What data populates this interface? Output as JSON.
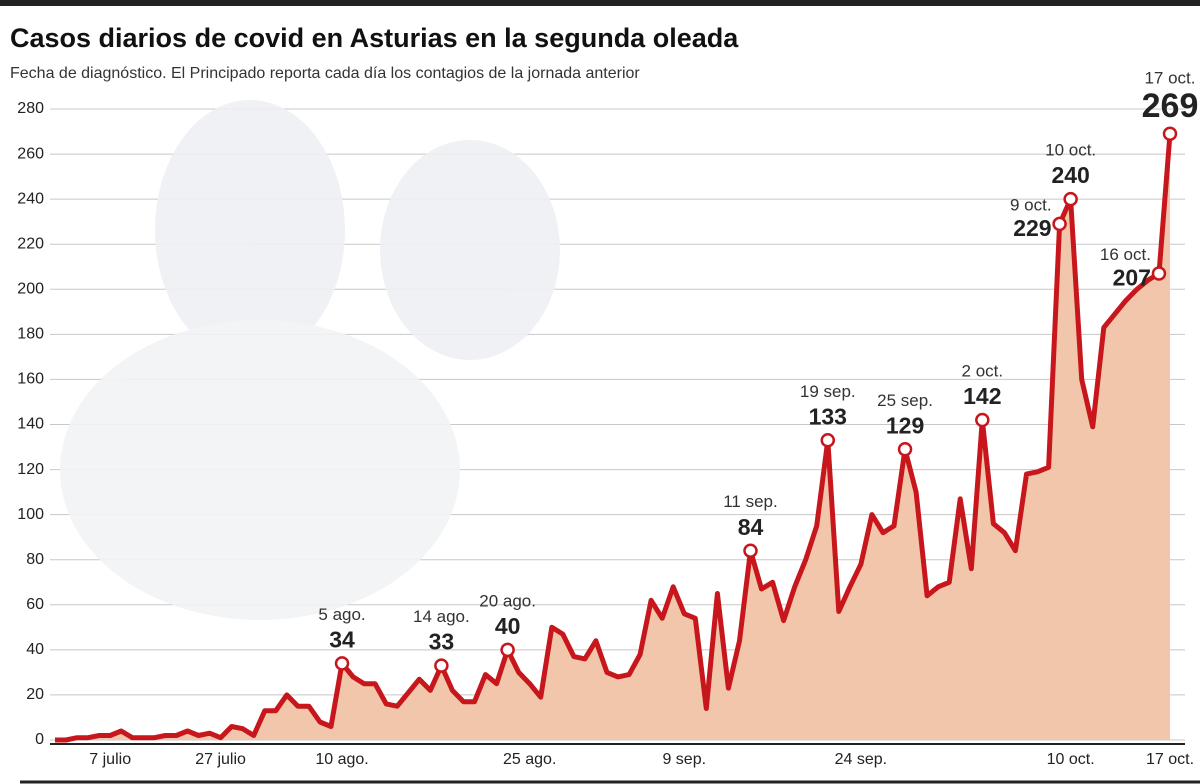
{
  "chart_data": {
    "type": "line",
    "title": "Casos diarios de covid en Asturias en la segunda oleada",
    "subtitle": "Fecha de diagnóstico. El Principado reporta cada día los contagios de la jornada anterior",
    "categories": [
      null,
      null,
      null,
      null,
      null,
      "7 julio",
      null,
      null,
      null,
      null,
      null,
      null,
      null,
      null,
      null,
      "27 julio",
      null,
      null,
      null,
      null,
      null,
      null,
      null,
      null,
      null,
      null,
      "10 ago.",
      null,
      null,
      null,
      null,
      null,
      null,
      null,
      null,
      null,
      null,
      null,
      null,
      null,
      null,
      null,
      null,
      "25 ago.",
      null,
      null,
      null,
      null,
      null,
      null,
      null,
      null,
      null,
      null,
      null,
      null,
      null,
      "9 sep.",
      null,
      null,
      null,
      null,
      null,
      null,
      null,
      null,
      null,
      null,
      null,
      null,
      null,
      null,
      null,
      "24 sep.",
      null,
      null,
      null,
      null,
      null,
      null,
      null,
      null,
      null,
      null,
      null,
      null,
      null,
      null,
      null,
      null,
      null,
      null,
      "10 oct.",
      null,
      null,
      null,
      null,
      null,
      null,
      null,
      null,
      "17 oct."
    ],
    "series": [
      {
        "name": "Casos diarios",
        "color": "#c8161d",
        "area_color": "#f2c6ab",
        "values": [
          0,
          0,
          1,
          1,
          2,
          2,
          4,
          1,
          1,
          1,
          2,
          2,
          4,
          2,
          3,
          1,
          6,
          5,
          2,
          13,
          13,
          20,
          15,
          15,
          8,
          6,
          34,
          28,
          25,
          25,
          16,
          15,
          21,
          27,
          22,
          33,
          22,
          17,
          17,
          29,
          25,
          40,
          30,
          25,
          19,
          50,
          47,
          37,
          36,
          44,
          30,
          28,
          29,
          38,
          62,
          54,
          68,
          56,
          54,
          14,
          65,
          23,
          44,
          84,
          67,
          70,
          53,
          68,
          80,
          95,
          133,
          57,
          68,
          78,
          100,
          92,
          95,
          129,
          110,
          64,
          68,
          70,
          107,
          76,
          142,
          96,
          92,
          84,
          118,
          119,
          121,
          229,
          240,
          160,
          139,
          183,
          189,
          195,
          200,
          204,
          207,
          269
        ],
        "point_labels": [
          null,
          null,
          null,
          null,
          null,
          null,
          null,
          null,
          null,
          null,
          null,
          null,
          null,
          null,
          null,
          null,
          null,
          null,
          null,
          null,
          null,
          null,
          null,
          null,
          null,
          null,
          "5 ago.",
          null,
          null,
          null,
          null,
          null,
          null,
          null,
          null,
          "14 ago.",
          null,
          null,
          null,
          null,
          null,
          "20 ago.",
          null,
          null,
          null,
          null,
          null,
          null,
          null,
          null,
          null,
          null,
          null,
          null,
          null,
          null,
          null,
          null,
          null,
          null,
          null,
          null,
          null,
          "11 sep.",
          null,
          null,
          null,
          null,
          null,
          null,
          "19 sep.",
          null,
          null,
          null,
          null,
          null,
          null,
          "25 sep.",
          null,
          null,
          null,
          null,
          null,
          null,
          "2 oct.",
          null,
          null,
          null,
          null,
          null,
          null,
          "9 oct.",
          "10 oct.",
          null,
          null,
          null,
          null,
          null,
          null,
          null,
          "16 oct.",
          "17 oct."
        ]
      }
    ],
    "ylim": [
      0,
      280
    ],
    "yticks": [
      0,
      20,
      40,
      60,
      80,
      100,
      120,
      140,
      160,
      180,
      200,
      220,
      240,
      260,
      280
    ],
    "grid": true
  }
}
